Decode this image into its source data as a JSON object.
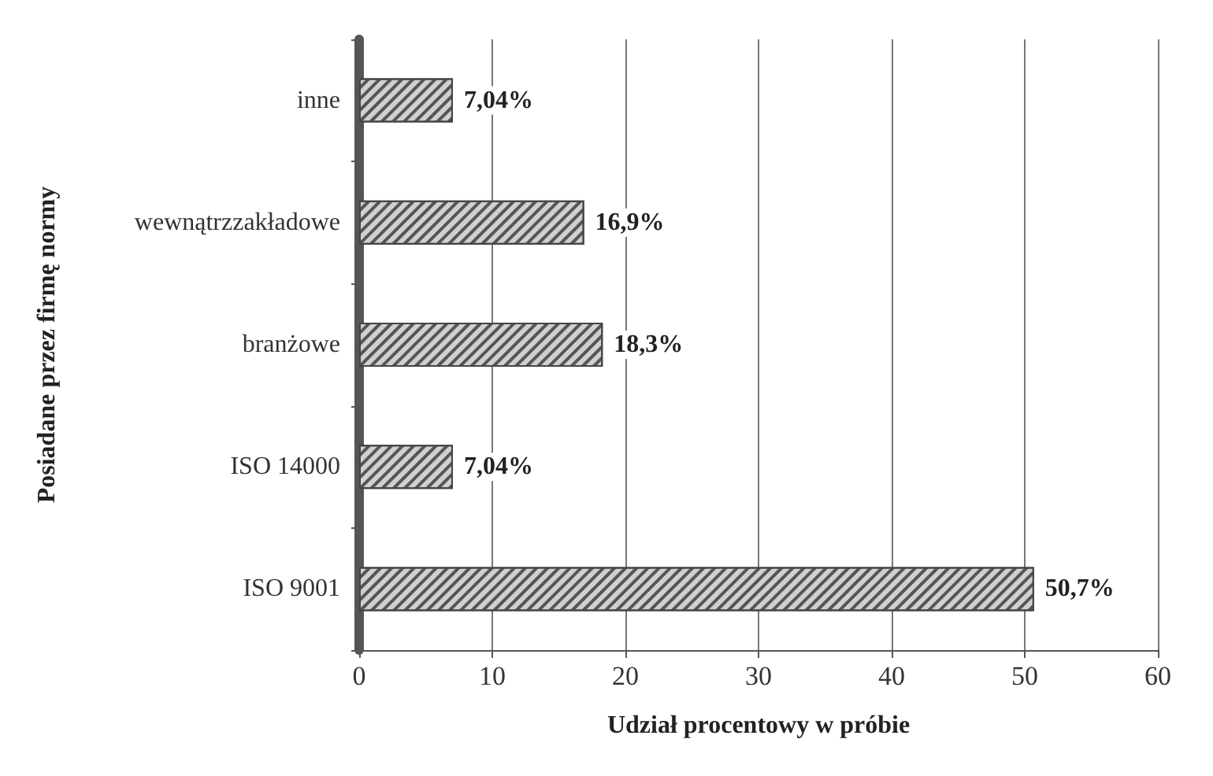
{
  "chart_data": {
    "type": "bar",
    "orientation": "horizontal",
    "xlabel": "Udział procentowy w próbie",
    "ylabel": "Posiadane przez firmę normy",
    "categories": [
      "inne",
      "wewnątrzzakładowe",
      "branżowe",
      "ISO 14000",
      "ISO 9001"
    ],
    "values": [
      7.04,
      16.9,
      18.3,
      7.04,
      50.7
    ],
    "value_labels": [
      "7,04%",
      "16,9%",
      "18,3%",
      "7,04%",
      "50,7%"
    ],
    "color": "#d0d0d0",
    "xlim": [
      0,
      60
    ],
    "xticks": [
      0,
      10,
      20,
      30,
      40,
      50,
      60
    ],
    "grid": "x"
  }
}
